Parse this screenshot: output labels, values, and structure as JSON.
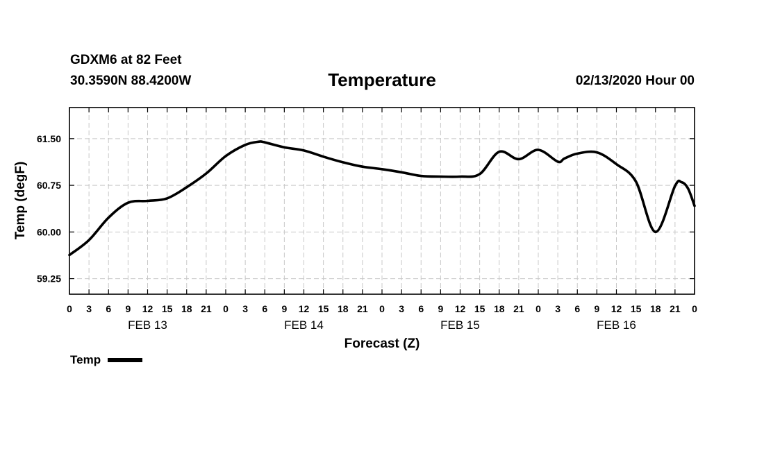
{
  "header": {
    "station": "GDXM6 at 82 Feet",
    "coords": "30.3590N 88.4200W",
    "title": "Temperature",
    "run": "02/13/2020 Hour 00"
  },
  "legend": {
    "label": "Temp"
  },
  "chart_data": {
    "type": "line",
    "title": "Temperature",
    "xlabel": "Forecast (Z)",
    "ylabel": "Temp (degF)",
    "x_unit": "forecast hour",
    "xlim": [
      0,
      96
    ],
    "ylim": [
      59.0,
      62.0
    ],
    "grid": true,
    "legend_position": "bottom-left",
    "y_ticks": [
      59.25,
      60.0,
      60.75,
      61.5
    ],
    "y_tick_labels": [
      "59.25",
      "60.00",
      "60.75",
      "61.50"
    ],
    "x_ticks": [
      0,
      3,
      6,
      9,
      12,
      15,
      18,
      21,
      24,
      27,
      30,
      33,
      36,
      39,
      42,
      45,
      48,
      51,
      54,
      57,
      60,
      63,
      66,
      69,
      72,
      75,
      78,
      81,
      84,
      87,
      90,
      93,
      96
    ],
    "x_tick_labels": [
      "0",
      "3",
      "6",
      "9",
      "12",
      "15",
      "18",
      "21",
      "0",
      "3",
      "6",
      "9",
      "12",
      "15",
      "18",
      "21",
      "0",
      "3",
      "6",
      "9",
      "12",
      "15",
      "18",
      "21",
      "0",
      "3",
      "6",
      "9",
      "12",
      "15",
      "18",
      "21",
      "0"
    ],
    "day_labels": [
      {
        "label": "FEB 13",
        "hour": 12
      },
      {
        "label": "FEB 14",
        "hour": 36
      },
      {
        "label": "FEB 15",
        "hour": 60
      },
      {
        "label": "FEB 16",
        "hour": 84
      }
    ],
    "series": [
      {
        "name": "Temp",
        "x": [
          0,
          3,
          6,
          9,
          12,
          15,
          18,
          21,
          24,
          27,
          29,
          30,
          33,
          36,
          39,
          42,
          45,
          48,
          51,
          54,
          57,
          60,
          63,
          66,
          69,
          72,
          75,
          76,
          78,
          81,
          84,
          87,
          90,
          93,
          94,
          95,
          96
        ],
        "y": [
          59.63,
          59.87,
          60.23,
          60.47,
          60.5,
          60.54,
          60.72,
          60.94,
          61.22,
          61.4,
          61.45,
          61.44,
          61.36,
          61.31,
          61.21,
          61.12,
          61.05,
          61.01,
          60.96,
          60.9,
          60.89,
          60.89,
          60.93,
          61.29,
          61.17,
          61.32,
          61.13,
          61.18,
          61.26,
          61.28,
          61.09,
          60.81,
          60.0,
          60.74,
          60.8,
          60.7,
          60.42
        ]
      }
    ]
  }
}
